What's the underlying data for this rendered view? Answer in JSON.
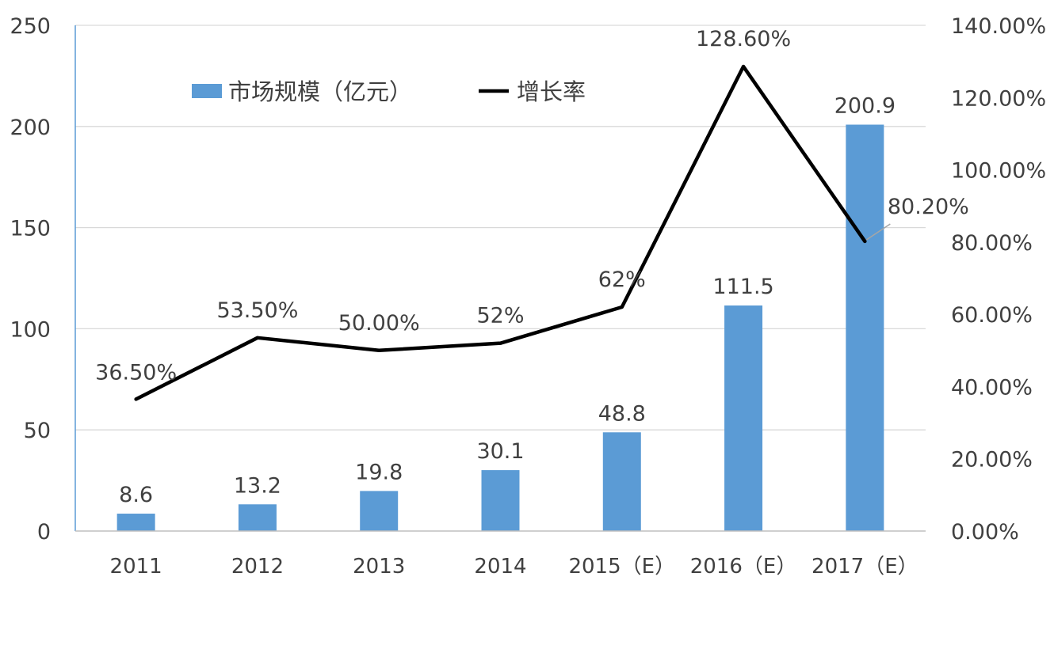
{
  "chart_data": {
    "type": "bar",
    "categories": [
      "2011",
      "2012",
      "2013",
      "2014",
      "2015（E）",
      "2016（E）",
      "2017（E）"
    ],
    "series": [
      {
        "name": "市场规模（亿元）",
        "type": "bar",
        "axis": "left",
        "color": "#5b9bd5",
        "values": [
          8.6,
          13.2,
          19.8,
          30.1,
          48.8,
          111.5,
          200.9
        ],
        "labels": [
          "8.6",
          "13.2",
          "19.8",
          "30.1",
          "48.8",
          "111.5",
          "200.9"
        ]
      },
      {
        "name": "增长率",
        "type": "line",
        "axis": "right",
        "color": "#000000",
        "values": [
          36.5,
          53.5,
          50.0,
          52,
          62,
          128.6,
          80.2
        ],
        "labels": [
          "36.50%",
          "53.50%",
          "50.00%",
          "52%",
          "62%",
          "128.60%",
          "80.20%"
        ]
      }
    ],
    "y_left": {
      "ylim": [
        0,
        250
      ],
      "ticks": [
        "0",
        "50",
        "100",
        "150",
        "200",
        "250"
      ]
    },
    "y_right": {
      "ylim": [
        0,
        140
      ],
      "ticks": [
        "0.00%",
        "20.00%",
        "40.00%",
        "60.00%",
        "80.00%",
        "100.00%",
        "120.00%",
        "140.00%"
      ]
    },
    "grid": true,
    "legend": "top-left"
  }
}
